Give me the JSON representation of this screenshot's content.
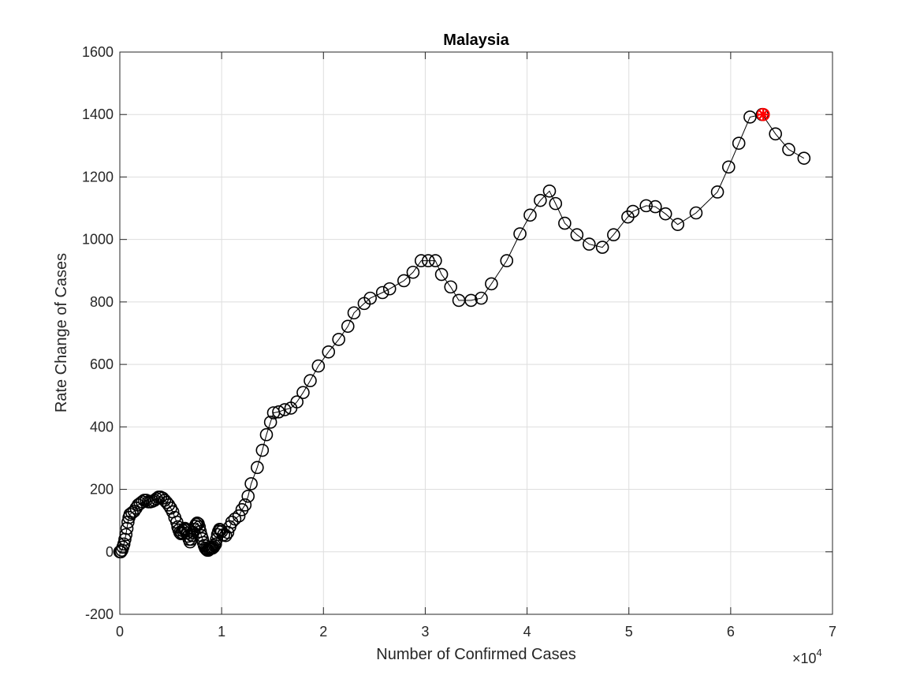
{
  "chart_data": {
    "type": "scatter",
    "title": "Malaysia",
    "xlabel": "Number of Confirmed Cases",
    "ylabel": "Rate Change of Cases",
    "x_scale_label": "×10",
    "x_scale_exponent": "4",
    "xlim": [
      0,
      70000
    ],
    "ylim": [
      -200,
      1600
    ],
    "x_ticks": [
      0,
      10000,
      20000,
      30000,
      40000,
      50000,
      60000,
      70000
    ],
    "x_tick_labels": [
      "0",
      "1",
      "2",
      "3",
      "4",
      "5",
      "6",
      "7"
    ],
    "y_ticks": [
      -200,
      0,
      200,
      400,
      600,
      800,
      1000,
      1200,
      1400,
      1600
    ],
    "y_tick_labels": [
      "-200",
      "0",
      "200",
      "400",
      "600",
      "800",
      "1000",
      "1200",
      "1400",
      "1600"
    ],
    "grid": true,
    "marker_color": "#000000",
    "highlight_color": "#ff0000",
    "series": [
      {
        "values": [
          [
            0,
            0
          ],
          [
            100,
            0
          ],
          [
            200,
            5
          ],
          [
            300,
            15
          ],
          [
            400,
            25
          ],
          [
            500,
            40
          ],
          [
            600,
            55
          ],
          [
            700,
            75
          ],
          [
            800,
            95
          ],
          [
            900,
            110
          ],
          [
            1000,
            120
          ],
          [
            1200,
            125
          ],
          [
            1400,
            130
          ],
          [
            1600,
            140
          ],
          [
            1800,
            150
          ],
          [
            2000,
            155
          ],
          [
            2200,
            160
          ],
          [
            2400,
            165
          ],
          [
            2600,
            165
          ],
          [
            2800,
            160
          ],
          [
            3000,
            160
          ],
          [
            3200,
            162
          ],
          [
            3400,
            165
          ],
          [
            3600,
            170
          ],
          [
            3800,
            175
          ],
          [
            4000,
            175
          ],
          [
            4200,
            172
          ],
          [
            4400,
            165
          ],
          [
            4600,
            158
          ],
          [
            4800,
            150
          ],
          [
            5000,
            140
          ],
          [
            5200,
            128
          ],
          [
            5400,
            110
          ],
          [
            5600,
            95
          ],
          [
            5700,
            80
          ],
          [
            5800,
            70
          ],
          [
            5900,
            62
          ],
          [
            6000,
            58
          ],
          [
            6100,
            62
          ],
          [
            6200,
            68
          ],
          [
            6300,
            72
          ],
          [
            6400,
            75
          ],
          [
            6500,
            70
          ],
          [
            6600,
            60
          ],
          [
            6700,
            50
          ],
          [
            6800,
            40
          ],
          [
            6900,
            32
          ],
          [
            7000,
            40
          ],
          [
            7100,
            52
          ],
          [
            7200,
            62
          ],
          [
            7300,
            72
          ],
          [
            7400,
            82
          ],
          [
            7500,
            88
          ],
          [
            7600,
            92
          ],
          [
            7700,
            90
          ],
          [
            7800,
            80
          ],
          [
            7900,
            65
          ],
          [
            8000,
            52
          ],
          [
            8100,
            42
          ],
          [
            8200,
            30
          ],
          [
            8300,
            20
          ],
          [
            8400,
            12
          ],
          [
            8500,
            8
          ],
          [
            8600,
            5
          ],
          [
            8700,
            5
          ],
          [
            8800,
            8
          ],
          [
            8900,
            10
          ],
          [
            9000,
            12
          ],
          [
            9100,
            12
          ],
          [
            9200,
            15
          ],
          [
            9300,
            20
          ],
          [
            9400,
            25
          ],
          [
            9500,
            40
          ],
          [
            9600,
            55
          ],
          [
            9700,
            65
          ],
          [
            9800,
            72
          ],
          [
            9900,
            70
          ],
          [
            10000,
            65
          ],
          [
            10200,
            55
          ],
          [
            10400,
            52
          ],
          [
            10600,
            62
          ],
          [
            10800,
            80
          ],
          [
            11000,
            95
          ],
          [
            11300,
            105
          ],
          [
            11700,
            115
          ],
          [
            12000,
            135
          ],
          [
            12300,
            150
          ],
          [
            12600,
            178
          ],
          [
            12900,
            218
          ],
          [
            13500,
            270
          ],
          [
            14000,
            325
          ],
          [
            14400,
            375
          ],
          [
            14800,
            415
          ],
          [
            15100,
            445
          ],
          [
            15600,
            448
          ],
          [
            16200,
            455
          ],
          [
            16800,
            460
          ],
          [
            17400,
            480
          ],
          [
            18000,
            510
          ],
          [
            18700,
            548
          ],
          [
            19500,
            595
          ],
          [
            20500,
            640
          ],
          [
            21500,
            680
          ],
          [
            22400,
            722
          ],
          [
            23000,
            765
          ],
          [
            24000,
            795
          ],
          [
            24600,
            812
          ],
          [
            25800,
            830
          ],
          [
            26500,
            842
          ],
          [
            27900,
            868
          ],
          [
            28800,
            895
          ],
          [
            29600,
            932
          ],
          [
            30300,
            932
          ],
          [
            31000,
            932
          ],
          [
            31600,
            888
          ],
          [
            32500,
            848
          ],
          [
            33300,
            805
          ],
          [
            34500,
            805
          ],
          [
            35500,
            812
          ],
          [
            36500,
            858
          ],
          [
            38000,
            932
          ],
          [
            39300,
            1018
          ],
          [
            40300,
            1078
          ],
          [
            41300,
            1125
          ],
          [
            42200,
            1155
          ],
          [
            42800,
            1115
          ],
          [
            43700,
            1052
          ],
          [
            44900,
            1015
          ],
          [
            46100,
            985
          ],
          [
            47400,
            975
          ],
          [
            48500,
            1015
          ],
          [
            49900,
            1072
          ],
          [
            50400,
            1090
          ],
          [
            51700,
            1108
          ],
          [
            52600,
            1105
          ],
          [
            53600,
            1082
          ],
          [
            54800,
            1048
          ],
          [
            56600,
            1085
          ],
          [
            58700,
            1152
          ],
          [
            59800,
            1232
          ],
          [
            60800,
            1308
          ],
          [
            61900,
            1392
          ],
          [
            63100,
            1400
          ],
          [
            64400,
            1338
          ],
          [
            65700,
            1288
          ],
          [
            67200,
            1260
          ]
        ]
      }
    ],
    "highlight_point": [
      63200,
      1400
    ]
  }
}
